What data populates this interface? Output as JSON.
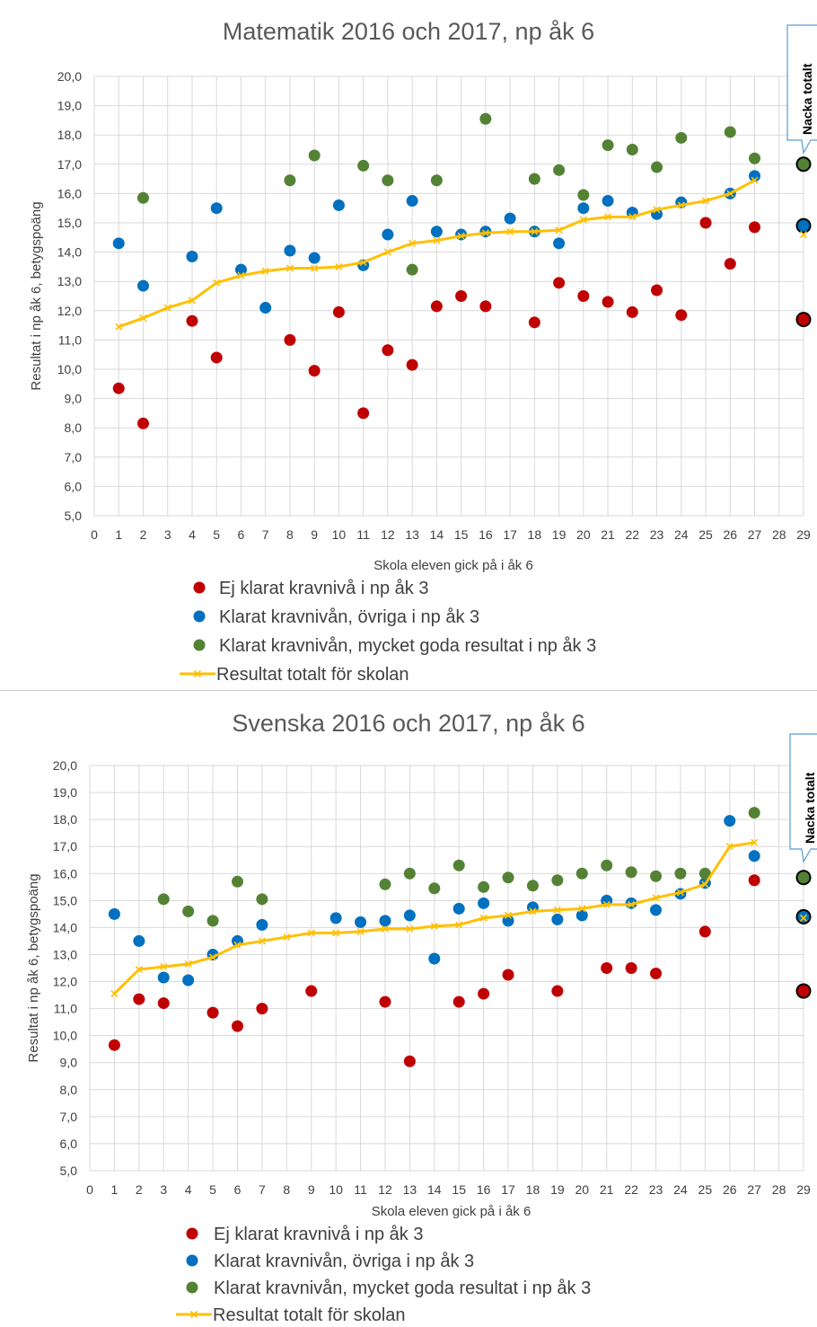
{
  "colors": {
    "ej_klarat": "#c00000",
    "klarat_ovriga": "#0070c0",
    "mycket_goda": "#548235",
    "total_line": "#ffc000",
    "grid": "#d9d9d9",
    "text": "#404040"
  },
  "chart_data": [
    {
      "type": "scatter",
      "title": "Matematik 2016 och 2017, np åk 6",
      "xlabel": "Skola eleven gick på i åk 6",
      "ylabel": "Resultat i np åk 6, betygspoäng",
      "xlim": [
        0,
        29
      ],
      "ylim": [
        5,
        20
      ],
      "x_ticks": [
        "0",
        "1",
        "2",
        "3",
        "4",
        "5",
        "6",
        "7",
        "8",
        "9",
        "10",
        "11",
        "12",
        "13",
        "14",
        "15",
        "16",
        "17",
        "18",
        "19",
        "20",
        "21",
        "22",
        "23",
        "24",
        "25",
        "26",
        "27",
        "28",
        "29"
      ],
      "y_ticks": [
        "5,0",
        "6,0",
        "7,0",
        "8,0",
        "9,0",
        "10,0",
        "11,0",
        "12,0",
        "13,0",
        "14,0",
        "15,0",
        "16,0",
        "17,0",
        "18,0",
        "19,0",
        "20,0"
      ],
      "grid": true,
      "legend_position": "bottom",
      "callout": "Nacka totalt",
      "series": [
        {
          "name": "Ej klarat kravnivå i np åk 3",
          "kind": "points",
          "color": "#c00000",
          "points": [
            [
              1,
              9.35
            ],
            [
              2,
              8.15
            ],
            [
              4,
              11.65
            ],
            [
              5,
              10.4
            ],
            [
              8,
              11.0
            ],
            [
              9,
              9.95
            ],
            [
              10,
              11.95
            ],
            [
              11,
              8.5
            ],
            [
              12,
              10.65
            ],
            [
              13,
              10.15
            ],
            [
              14,
              12.15
            ],
            [
              15,
              12.5
            ],
            [
              16,
              12.15
            ],
            [
              18,
              11.6
            ],
            [
              19,
              12.95
            ],
            [
              20,
              12.5
            ],
            [
              21,
              12.3
            ],
            [
              22,
              11.95
            ],
            [
              23,
              12.7
            ],
            [
              24,
              11.85
            ],
            [
              25,
              15.0
            ],
            [
              26,
              13.6
            ],
            [
              27,
              14.85
            ],
            [
              29,
              11.7
            ]
          ]
        },
        {
          "name": "Klarat kravnivån, övriga i np åk 3",
          "kind": "points",
          "color": "#0070c0",
          "points": [
            [
              1,
              14.3
            ],
            [
              2,
              12.85
            ],
            [
              4,
              13.85
            ],
            [
              5,
              15.5
            ],
            [
              6,
              13.4
            ],
            [
              7,
              12.1
            ],
            [
              8,
              14.05
            ],
            [
              9,
              13.8
            ],
            [
              10,
              15.6
            ],
            [
              11,
              13.55
            ],
            [
              12,
              14.6
            ],
            [
              13,
              15.75
            ],
            [
              14,
              14.7
            ],
            [
              15,
              14.6
            ],
            [
              16,
              14.7
            ],
            [
              17,
              15.15
            ],
            [
              18,
              14.7
            ],
            [
              19,
              14.3
            ],
            [
              20,
              15.5
            ],
            [
              21,
              15.75
            ],
            [
              22,
              15.35
            ],
            [
              23,
              15.3
            ],
            [
              24,
              15.7
            ],
            [
              26,
              16.0
            ],
            [
              27,
              16.6
            ],
            [
              29,
              14.9
            ]
          ]
        },
        {
          "name": "Klarat kravnivån, mycket goda resultat i np åk 3",
          "kind": "points",
          "color": "#548235",
          "points": [
            [
              2,
              15.85
            ],
            [
              8,
              16.45
            ],
            [
              9,
              17.3
            ],
            [
              11,
              16.95
            ],
            [
              12,
              16.45
            ],
            [
              13,
              13.4
            ],
            [
              14,
              16.45
            ],
            [
              16,
              18.55
            ],
            [
              18,
              16.5
            ],
            [
              19,
              16.8
            ],
            [
              20,
              15.95
            ],
            [
              21,
              17.65
            ],
            [
              22,
              17.5
            ],
            [
              23,
              16.9
            ],
            [
              24,
              17.9
            ],
            [
              26,
              18.1
            ],
            [
              27,
              17.2
            ],
            [
              29,
              17.0
            ]
          ]
        },
        {
          "name": "Resultat totalt för skolan",
          "kind": "line",
          "color": "#ffc000",
          "points": [
            [
              1,
              11.45
            ],
            [
              2,
              11.75
            ],
            [
              3,
              12.1
            ],
            [
              4,
              12.35
            ],
            [
              5,
              12.95
            ],
            [
              6,
              13.2
            ],
            [
              7,
              13.35
            ],
            [
              8,
              13.45
            ],
            [
              9,
              13.45
            ],
            [
              10,
              13.5
            ],
            [
              11,
              13.65
            ],
            [
              12,
              14.0
            ],
            [
              13,
              14.3
            ],
            [
              14,
              14.4
            ],
            [
              15,
              14.55
            ],
            [
              16,
              14.65
            ],
            [
              17,
              14.7
            ],
            [
              18,
              14.7
            ],
            [
              19,
              14.75
            ],
            [
              20,
              15.1
            ],
            [
              21,
              15.2
            ],
            [
              22,
              15.2
            ],
            [
              23,
              15.45
            ],
            [
              24,
              15.6
            ],
            [
              25,
              15.75
            ],
            [
              26,
              16.0
            ],
            [
              27,
              16.45
            ]
          ],
          "extra_points": [
            [
              29,
              14.6
            ]
          ]
        }
      ]
    },
    {
      "type": "scatter",
      "title": "Svenska 2016 och 2017, np åk 6",
      "xlabel": "Skola eleven gick på i åk 6",
      "ylabel": "Resultat i np åk 6, betygspoäng",
      "xlim": [
        0,
        29
      ],
      "ylim": [
        5,
        20
      ],
      "x_ticks": [
        "0",
        "1",
        "2",
        "3",
        "4",
        "5",
        "6",
        "7",
        "8",
        "9",
        "10",
        "11",
        "12",
        "13",
        "14",
        "15",
        "16",
        "17",
        "18",
        "19",
        "20",
        "21",
        "22",
        "23",
        "24",
        "25",
        "26",
        "27",
        "28",
        "29"
      ],
      "y_ticks": [
        "5,0",
        "6,0",
        "7,0",
        "8,0",
        "9,0",
        "10,0",
        "11,0",
        "12,0",
        "13,0",
        "14,0",
        "15,0",
        "16,0",
        "17,0",
        "18,0",
        "19,0",
        "20,0"
      ],
      "grid": true,
      "legend_position": "bottom",
      "callout": "Nacka totalt",
      "series": [
        {
          "name": "Ej klarat kravnivå i np åk 3",
          "kind": "points",
          "color": "#c00000",
          "points": [
            [
              1,
              9.65
            ],
            [
              2,
              11.35
            ],
            [
              3,
              11.2
            ],
            [
              5,
              10.85
            ],
            [
              6,
              10.35
            ],
            [
              7,
              11.0
            ],
            [
              9,
              11.65
            ],
            [
              12,
              11.25
            ],
            [
              13,
              9.05
            ],
            [
              15,
              11.25
            ],
            [
              16,
              11.55
            ],
            [
              17,
              12.25
            ],
            [
              19,
              11.65
            ],
            [
              21,
              12.5
            ],
            [
              22,
              12.5
            ],
            [
              23,
              12.3
            ],
            [
              25,
              13.85
            ],
            [
              27,
              15.75
            ],
            [
              29,
              11.65
            ]
          ]
        },
        {
          "name": "Klarat kravnivån, övriga i np åk 3",
          "kind": "points",
          "color": "#0070c0",
          "points": [
            [
              1,
              14.5
            ],
            [
              2,
              13.5
            ],
            [
              3,
              12.15
            ],
            [
              4,
              12.05
            ],
            [
              5,
              13.0
            ],
            [
              6,
              13.5
            ],
            [
              7,
              14.1
            ],
            [
              10,
              14.35
            ],
            [
              11,
              14.2
            ],
            [
              12,
              14.25
            ],
            [
              13,
              14.45
            ],
            [
              14,
              12.85
            ],
            [
              15,
              14.7
            ],
            [
              16,
              14.9
            ],
            [
              17,
              14.25
            ],
            [
              18,
              14.75
            ],
            [
              19,
              14.3
            ],
            [
              20,
              14.45
            ],
            [
              21,
              15.0
            ],
            [
              22,
              14.9
            ],
            [
              23,
              14.65
            ],
            [
              24,
              15.25
            ],
            [
              25,
              15.65
            ],
            [
              26,
              17.95
            ],
            [
              27,
              16.65
            ],
            [
              29,
              14.4
            ]
          ]
        },
        {
          "name": "Klarat kravnivån, mycket goda resultat i np åk 3",
          "kind": "points",
          "color": "#548235",
          "points": [
            [
              3,
              15.05
            ],
            [
              4,
              14.6
            ],
            [
              5,
              14.25
            ],
            [
              6,
              15.7
            ],
            [
              7,
              15.05
            ],
            [
              12,
              15.6
            ],
            [
              13,
              16.0
            ],
            [
              14,
              15.45
            ],
            [
              15,
              16.3
            ],
            [
              16,
              15.5
            ],
            [
              17,
              15.85
            ],
            [
              18,
              15.55
            ],
            [
              19,
              15.75
            ],
            [
              20,
              16.0
            ],
            [
              21,
              16.3
            ],
            [
              22,
              16.05
            ],
            [
              23,
              15.9
            ],
            [
              24,
              16.0
            ],
            [
              25,
              16.0
            ],
            [
              27,
              18.25
            ],
            [
              29,
              15.85
            ]
          ]
        },
        {
          "name": "Resultat totalt för skolan",
          "kind": "line",
          "color": "#ffc000",
          "points": [
            [
              1,
              11.55
            ],
            [
              2,
              12.45
            ],
            [
              3,
              12.55
            ],
            [
              4,
              12.65
            ],
            [
              5,
              12.9
            ],
            [
              6,
              13.35
            ],
            [
              7,
              13.5
            ],
            [
              8,
              13.65
            ],
            [
              9,
              13.8
            ],
            [
              10,
              13.8
            ],
            [
              11,
              13.85
            ],
            [
              12,
              13.95
            ],
            [
              13,
              13.95
            ],
            [
              14,
              14.05
            ],
            [
              15,
              14.1
            ],
            [
              16,
              14.35
            ],
            [
              17,
              14.45
            ],
            [
              18,
              14.6
            ],
            [
              19,
              14.65
            ],
            [
              20,
              14.7
            ],
            [
              21,
              14.85
            ],
            [
              22,
              14.85
            ],
            [
              23,
              15.1
            ],
            [
              24,
              15.3
            ],
            [
              25,
              15.6
            ],
            [
              26,
              17.0
            ],
            [
              27,
              17.15
            ]
          ],
          "extra_points": [
            [
              29,
              14.35
            ]
          ]
        }
      ]
    }
  ]
}
